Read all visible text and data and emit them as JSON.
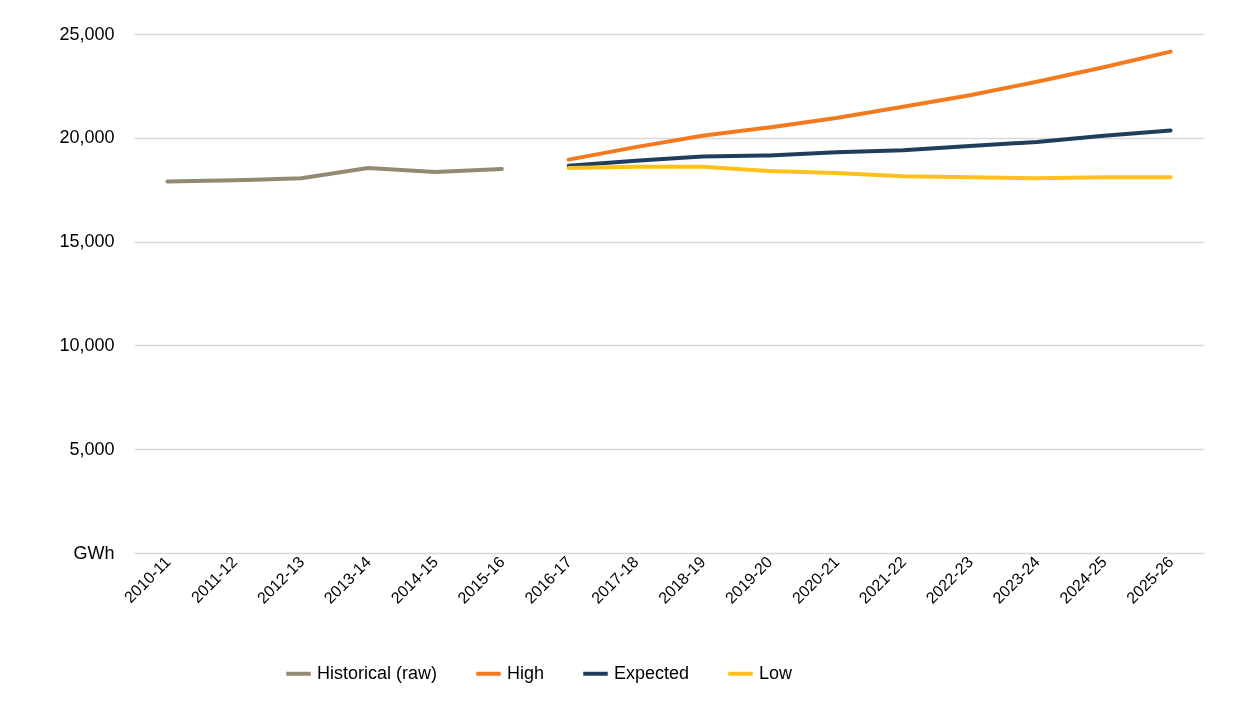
{
  "chart_data": {
    "type": "line",
    "categories": [
      "2010-11",
      "2011-12",
      "2012-13",
      "2013-14",
      "2014-15",
      "2015-16",
      "2016-17",
      "2017-18",
      "2018-19",
      "2019-20",
      "2020-21",
      "2021-22",
      "2022-23",
      "2023-24",
      "2024-25",
      "2025-26"
    ],
    "series": [
      {
        "name": "Historical (raw)",
        "color": "#948a72",
        "values": [
          17900,
          17950,
          18050,
          18550,
          18350,
          18500,
          null,
          null,
          null,
          null,
          null,
          null,
          null,
          null,
          null,
          null
        ]
      },
      {
        "name": "High",
        "color": "#f47a20",
        "values": [
          null,
          null,
          null,
          null,
          null,
          null,
          18950,
          19550,
          20100,
          20500,
          20950,
          21500,
          22050,
          22700,
          23400,
          24150
        ]
      },
      {
        "name": "Expected",
        "color": "#1f3e5e",
        "values": [
          null,
          null,
          null,
          null,
          null,
          null,
          18650,
          18900,
          19100,
          19150,
          19300,
          19400,
          19600,
          19800,
          20100,
          20350
        ]
      },
      {
        "name": "Low",
        "color": "#fdc01e",
        "values": [
          null,
          null,
          null,
          null,
          null,
          null,
          18550,
          18600,
          18600,
          18400,
          18300,
          18150,
          18100,
          18050,
          18100,
          18100
        ]
      }
    ],
    "ylim": [
      0,
      25000
    ],
    "yticks": [
      {
        "value": 0,
        "label": "GWh"
      },
      {
        "value": 5000,
        "label": "5,000"
      },
      {
        "value": 10000,
        "label": "10,000"
      },
      {
        "value": 15000,
        "label": "15,000"
      },
      {
        "value": 20000,
        "label": "20,000"
      },
      {
        "value": 25000,
        "label": "25,000"
      }
    ],
    "grid": "y",
    "legend": "bottom",
    "line_style": "solid",
    "marker": "none"
  }
}
